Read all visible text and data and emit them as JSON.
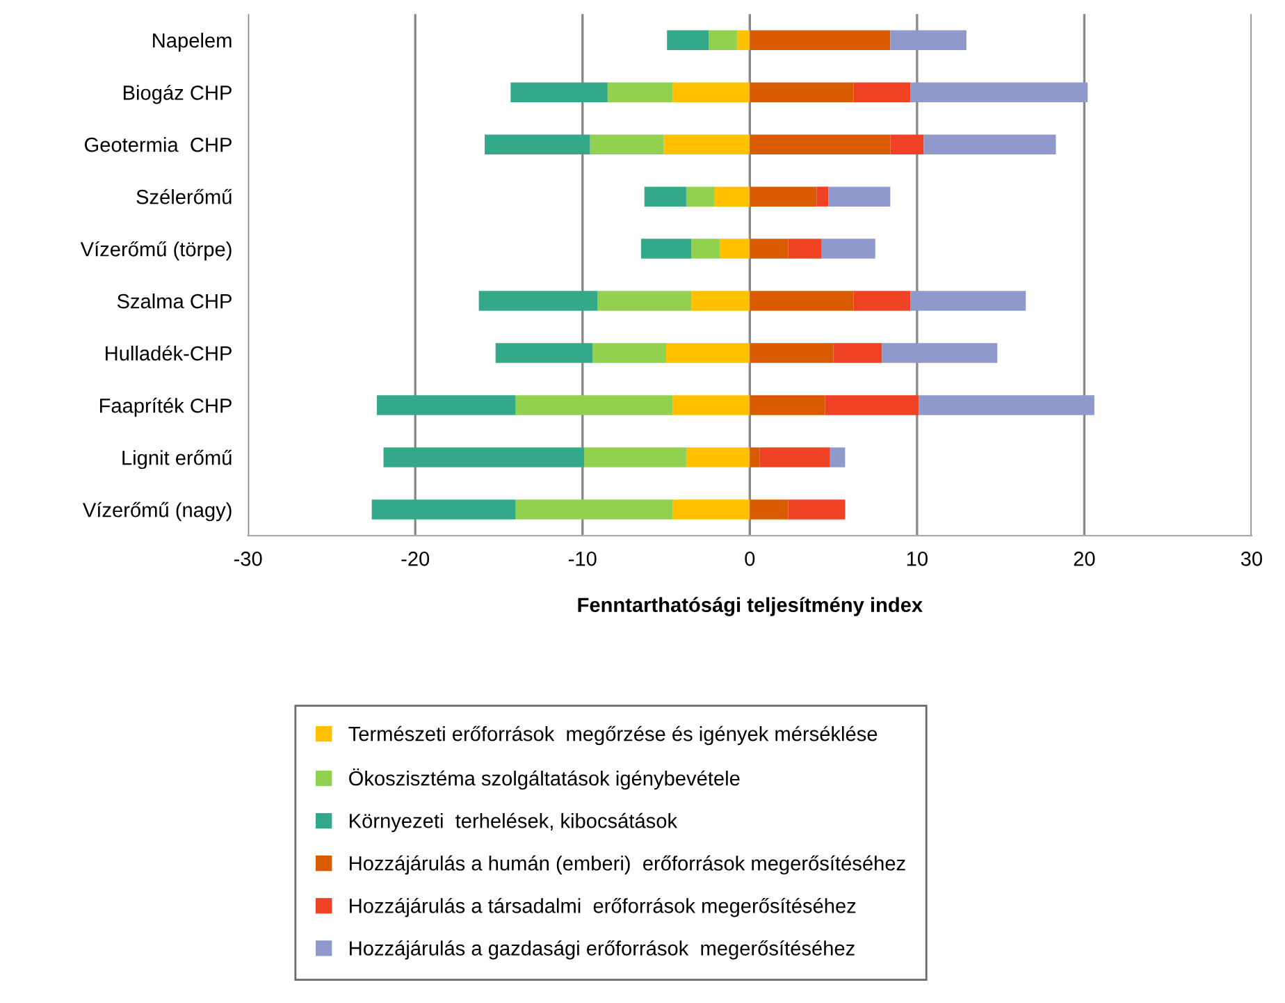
{
  "chart_data": {
    "type": "bar",
    "orientation": "horizontal",
    "stacked": true,
    "xlabel": "Fenntarthatósági teljesítmény index",
    "categories": [
      "Napelem",
      "Biogáz CHP",
      "Geotermia  CHP",
      "Szélerőmű",
      "Vízerőmű (törpe)",
      "Szalma CHP",
      "Hulladék-CHP",
      "Faapríték CHP",
      "Lignit erőmű",
      "Vízerőmű (nagy)"
    ],
    "series": [
      {
        "name": "Természeti erőforrások  megőrzése és igények mérséklése",
        "color": "#ffc000",
        "values": [
          -0.75,
          -4.6,
          -5.15,
          -2.1,
          -1.8,
          -3.5,
          -5.0,
          -4.6,
          -3.8,
          -4.6
        ]
      },
      {
        "name": "Ökoszisztéma szolgáltatások igénybevétele",
        "color": "#92d050",
        "values": [
          -1.7,
          -3.9,
          -4.4,
          -1.7,
          -1.7,
          -5.6,
          -4.4,
          -9.4,
          -6.1,
          -9.4
        ]
      },
      {
        "name": "Környezeti  terhelések, kibocsátások",
        "color": "#33a98a",
        "values": [
          -2.5,
          -5.8,
          -6.3,
          -2.5,
          -3.0,
          -7.1,
          -5.8,
          -8.3,
          -12.0,
          -8.6
        ]
      },
      {
        "name": "Hozzájárulás a humán (emberi)  erőforrások megerősítéséhez",
        "color": "#d95b00",
        "values": [
          8.4,
          6.2,
          8.4,
          4.0,
          2.3,
          6.2,
          5.0,
          4.5,
          0.6,
          2.3
        ]
      },
      {
        "name": "Hozzájárulás a társadalmi  erőforrások megerősítéséhez",
        "color": "#ef4123",
        "values": [
          0,
          3.4,
          2.0,
          0.7,
          2.0,
          3.4,
          2.9,
          5.6,
          4.2,
          3.4
        ]
      },
      {
        "name": "Hozzájárulás a gazdasági erőforrások  megerősítéséhez",
        "color": "#8f99cc",
        "values": [
          4.55,
          10.6,
          7.9,
          3.7,
          3.2,
          6.9,
          6.9,
          10.5,
          0.9,
          0
        ]
      }
    ],
    "xlim": [
      -30,
      30
    ],
    "xticks": [
      -30,
      -20,
      -10,
      0,
      10,
      20,
      30
    ],
    "grid": "x",
    "legend": "bottom"
  }
}
